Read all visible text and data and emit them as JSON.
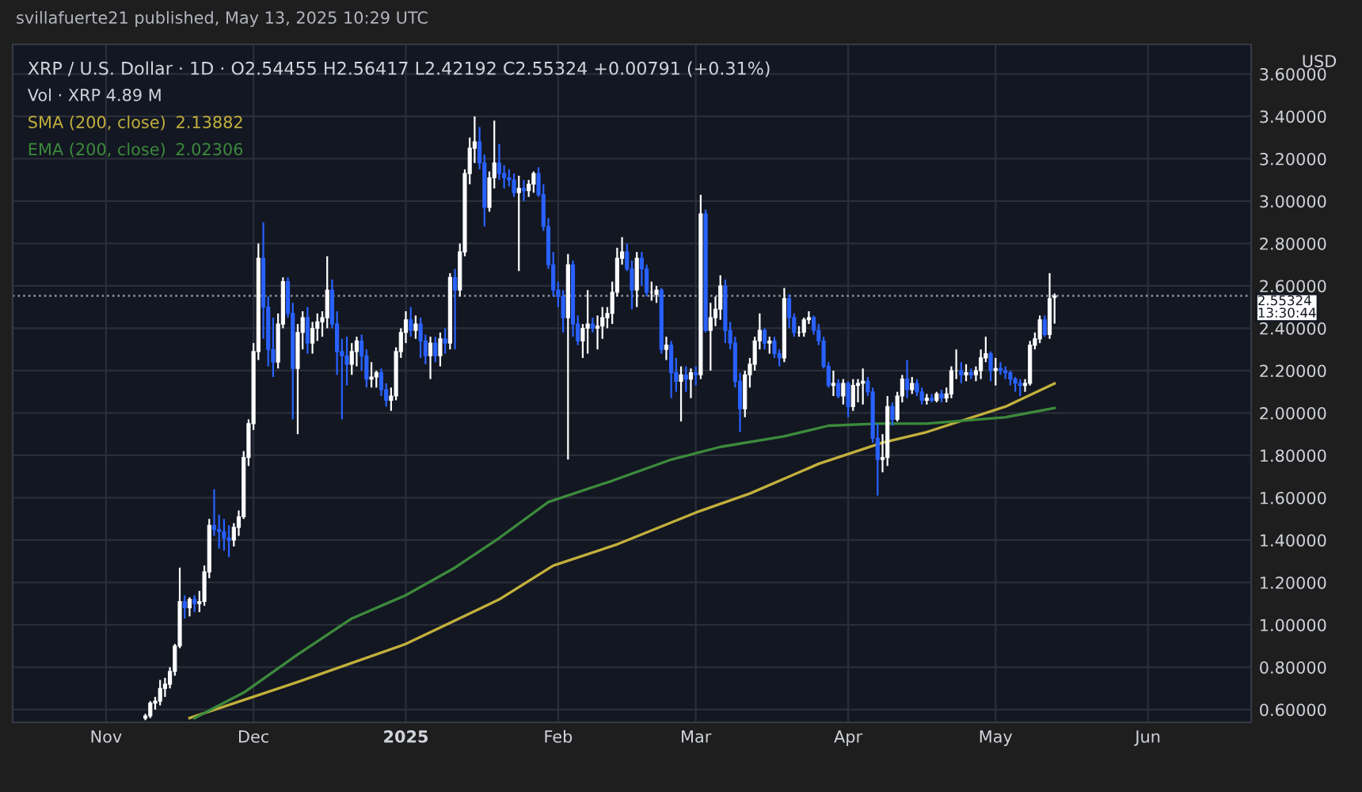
{
  "chart_data": {
    "type": "candlestick",
    "title": "XRP / U.S. Dollar · 1D · O2.54455 H2.56417 L2.42192 C2.55324 +0.00791 (+0.31%)",
    "ylabel": "USD",
    "annotations": [
      "svillafuerte21 published, May 13, 2025 10:29 UTC",
      "Vol · XRP 4.89 M",
      "2.13882",
      "2.02306"
    ],
    "x": [
      "2024-11-09",
      "2024-11-10",
      "2024-11-11",
      "2024-11-12",
      "2024-11-13",
      "2024-11-14",
      "2024-11-15",
      "2024-11-16",
      "2024-11-17",
      "2024-11-18",
      "2024-11-19",
      "2024-11-20",
      "2024-11-21",
      "2024-11-22",
      "2024-11-23",
      "2024-11-24",
      "2024-11-25",
      "2024-11-26",
      "2024-11-27",
      "2024-11-28",
      "2024-11-29",
      "2024-11-30",
      "2024-12-01",
      "2024-12-02",
      "2024-12-03",
      "2024-12-04",
      "2024-12-05",
      "2024-12-06",
      "2024-12-07",
      "2024-12-08",
      "2024-12-09",
      "2024-12-10",
      "2024-12-11",
      "2024-12-12",
      "2024-12-13",
      "2024-12-14",
      "2024-12-15",
      "2024-12-16",
      "2024-12-17",
      "2024-12-18",
      "2024-12-19",
      "2024-12-20",
      "2024-12-21",
      "2024-12-22",
      "2024-12-23",
      "2024-12-24",
      "2024-12-25",
      "2024-12-26",
      "2024-12-27",
      "2024-12-28",
      "2024-12-29",
      "2024-12-30",
      "2024-12-31",
      "2025-01-01",
      "2025-01-02",
      "2025-01-03",
      "2025-01-04",
      "2025-01-05",
      "2025-01-06",
      "2025-01-07",
      "2025-01-08",
      "2025-01-09",
      "2025-01-10",
      "2025-01-11",
      "2025-01-12",
      "2025-01-13",
      "2025-01-14",
      "2025-01-15",
      "2025-01-16",
      "2025-01-17",
      "2025-01-18",
      "2025-01-19",
      "2025-01-20",
      "2025-01-21",
      "2025-01-22",
      "2025-01-23",
      "2025-01-24",
      "2025-01-25",
      "2025-01-26",
      "2025-01-27",
      "2025-01-28",
      "2025-01-29",
      "2025-01-30",
      "2025-01-31",
      "2025-02-01",
      "2025-02-02",
      "2025-02-03",
      "2025-02-04",
      "2025-02-05",
      "2025-02-06",
      "2025-02-07",
      "2025-02-08",
      "2025-02-09",
      "2025-02-10",
      "2025-02-11",
      "2025-02-12",
      "2025-02-13",
      "2025-02-14",
      "2025-02-15",
      "2025-02-16",
      "2025-02-17",
      "2025-02-18",
      "2025-02-19",
      "2025-02-20",
      "2025-02-21",
      "2025-02-22",
      "2025-02-23",
      "2025-02-24",
      "2025-02-25",
      "2025-02-26",
      "2025-02-27",
      "2025-02-28",
      "2025-03-01",
      "2025-03-02",
      "2025-03-03",
      "2025-03-04",
      "2025-03-05",
      "2025-03-06",
      "2025-03-07",
      "2025-03-08",
      "2025-03-09",
      "2025-03-10",
      "2025-03-11",
      "2025-03-12",
      "2025-03-13",
      "2025-03-14",
      "2025-03-15",
      "2025-03-16",
      "2025-03-17",
      "2025-03-18",
      "2025-03-19",
      "2025-03-20",
      "2025-03-21",
      "2025-03-22",
      "2025-03-23",
      "2025-03-24",
      "2025-03-25",
      "2025-03-26",
      "2025-03-27",
      "2025-03-28",
      "2025-03-29",
      "2025-03-30",
      "2025-03-31",
      "2025-04-01",
      "2025-04-02",
      "2025-04-03",
      "2025-04-04",
      "2025-04-05",
      "2025-04-06",
      "2025-04-07",
      "2025-04-08",
      "2025-04-09",
      "2025-04-10",
      "2025-04-11",
      "2025-04-12",
      "2025-04-13",
      "2025-04-14",
      "2025-04-15",
      "2025-04-16",
      "2025-04-17",
      "2025-04-18",
      "2025-04-19",
      "2025-04-20",
      "2025-04-21",
      "2025-04-22",
      "2025-04-23",
      "2025-04-24",
      "2025-04-25",
      "2025-04-26",
      "2025-04-27",
      "2025-04-28",
      "2025-04-29",
      "2025-04-30",
      "2025-05-01",
      "2025-05-02",
      "2025-05-03",
      "2025-05-04",
      "2025-05-05",
      "2025-05-06",
      "2025-05-07",
      "2025-05-08",
      "2025-05-09",
      "2025-05-10",
      "2025-05-11",
      "2025-05-12",
      "2025-05-13"
    ],
    "ohlc": [
      [
        0.56,
        0.58,
        0.55,
        0.57
      ],
      [
        0.57,
        0.64,
        0.56,
        0.63
      ],
      [
        0.63,
        0.66,
        0.6,
        0.64
      ],
      [
        0.64,
        0.74,
        0.62,
        0.7
      ],
      [
        0.7,
        0.75,
        0.66,
        0.72
      ],
      [
        0.72,
        0.8,
        0.7,
        0.78
      ],
      [
        0.78,
        0.91,
        0.76,
        0.9
      ],
      [
        0.9,
        1.27,
        0.89,
        1.11
      ],
      [
        1.11,
        1.14,
        1.03,
        1.08
      ],
      [
        1.08,
        1.13,
        1.04,
        1.12
      ],
      [
        1.12,
        1.14,
        1.06,
        1.1
      ],
      [
        1.1,
        1.16,
        1.06,
        1.11
      ],
      [
        1.11,
        1.28,
        1.09,
        1.25
      ],
      [
        1.25,
        1.5,
        1.22,
        1.47
      ],
      [
        1.47,
        1.64,
        1.42,
        1.45
      ],
      [
        1.45,
        1.52,
        1.36,
        1.44
      ],
      [
        1.44,
        1.5,
        1.35,
        1.41
      ],
      [
        1.41,
        1.47,
        1.32,
        1.4
      ],
      [
        1.4,
        1.48,
        1.37,
        1.46
      ],
      [
        1.46,
        1.54,
        1.42,
        1.51
      ],
      [
        1.51,
        1.82,
        1.5,
        1.79
      ],
      [
        1.79,
        1.97,
        1.75,
        1.95
      ],
      [
        1.95,
        2.33,
        1.92,
        2.29
      ],
      [
        2.29,
        2.8,
        2.25,
        2.73
      ],
      [
        2.73,
        2.9,
        2.35,
        2.5
      ],
      [
        2.5,
        2.55,
        2.22,
        2.3
      ],
      [
        2.3,
        2.45,
        2.17,
        2.24
      ],
      [
        2.24,
        2.47,
        2.21,
        2.42
      ],
      [
        2.42,
        2.64,
        2.4,
        2.62
      ],
      [
        2.62,
        2.64,
        2.45,
        2.47
      ],
      [
        2.47,
        2.52,
        1.97,
        2.21
      ],
      [
        2.21,
        2.42,
        1.9,
        2.38
      ],
      [
        2.38,
        2.48,
        2.3,
        2.45
      ],
      [
        2.45,
        2.5,
        2.28,
        2.33
      ],
      [
        2.33,
        2.43,
        2.28,
        2.4
      ],
      [
        2.4,
        2.47,
        2.34,
        2.43
      ],
      [
        2.43,
        2.48,
        2.36,
        2.45
      ],
      [
        2.45,
        2.74,
        2.4,
        2.58
      ],
      [
        2.58,
        2.63,
        2.4,
        2.42
      ],
      [
        2.42,
        2.48,
        2.18,
        2.29
      ],
      [
        2.29,
        2.35,
        1.97,
        2.27
      ],
      [
        2.27,
        2.36,
        2.13,
        2.23
      ],
      [
        2.23,
        2.33,
        2.18,
        2.29
      ],
      [
        2.29,
        2.36,
        2.22,
        2.34
      ],
      [
        2.34,
        2.37,
        2.2,
        2.27
      ],
      [
        2.27,
        2.3,
        2.12,
        2.16
      ],
      [
        2.16,
        2.24,
        2.12,
        2.17
      ],
      [
        2.17,
        2.2,
        2.12,
        2.19
      ],
      [
        2.19,
        2.21,
        2.08,
        2.11
      ],
      [
        2.11,
        2.14,
        2.03,
        2.06
      ],
      [
        2.06,
        2.12,
        2.01,
        2.08
      ],
      [
        2.08,
        2.31,
        2.06,
        2.29
      ],
      [
        2.29,
        2.4,
        2.26,
        2.38
      ],
      [
        2.38,
        2.48,
        2.33,
        2.44
      ],
      [
        2.44,
        2.5,
        2.36,
        2.39
      ],
      [
        2.39,
        2.46,
        2.35,
        2.42
      ],
      [
        2.42,
        2.45,
        2.26,
        2.34
      ],
      [
        2.34,
        2.37,
        2.23,
        2.27
      ],
      [
        2.27,
        2.36,
        2.16,
        2.33
      ],
      [
        2.33,
        2.36,
        2.24,
        2.27
      ],
      [
        2.27,
        2.38,
        2.22,
        2.35
      ],
      [
        2.35,
        2.4,
        2.28,
        2.33
      ],
      [
        2.33,
        2.66,
        2.3,
        2.64
      ],
      [
        2.64,
        2.68,
        2.3,
        2.58
      ],
      [
        2.58,
        2.8,
        2.55,
        2.76
      ],
      [
        2.76,
        3.15,
        2.74,
        3.13
      ],
      [
        3.13,
        3.3,
        3.08,
        3.25
      ],
      [
        3.25,
        3.4,
        3.18,
        3.28
      ],
      [
        3.28,
        3.35,
        3.15,
        3.18
      ],
      [
        3.18,
        3.22,
        2.88,
        2.97
      ],
      [
        2.97,
        3.14,
        2.95,
        3.11
      ],
      [
        3.11,
        3.38,
        3.06,
        3.18
      ],
      [
        3.18,
        3.27,
        3.1,
        3.13
      ],
      [
        3.13,
        3.17,
        3.06,
        3.11
      ],
      [
        3.11,
        3.15,
        3.07,
        3.1
      ],
      [
        3.1,
        3.13,
        3.02,
        3.04
      ],
      [
        3.04,
        3.12,
        2.67,
        3.06
      ],
      [
        3.06,
        3.1,
        3.0,
        3.05
      ],
      [
        3.05,
        3.1,
        3.02,
        3.08
      ],
      [
        3.08,
        3.14,
        3.04,
        3.13
      ],
      [
        3.13,
        3.16,
        3.02,
        3.03
      ],
      [
        3.03,
        3.08,
        2.86,
        2.88
      ],
      [
        2.88,
        2.92,
        2.68,
        2.7
      ],
      [
        2.7,
        2.76,
        2.55,
        2.58
      ],
      [
        2.58,
        2.62,
        2.5,
        2.55
      ],
      [
        2.55,
        2.58,
        2.38,
        2.45
      ],
      [
        2.45,
        2.75,
        1.78,
        2.7
      ],
      [
        2.7,
        2.72,
        2.36,
        2.42
      ],
      [
        2.42,
        2.46,
        2.32,
        2.34
      ],
      [
        2.34,
        2.42,
        2.26,
        2.4
      ],
      [
        2.4,
        2.58,
        2.28,
        2.42
      ],
      [
        2.42,
        2.45,
        2.38,
        2.4
      ],
      [
        2.4,
        2.46,
        2.3,
        2.41
      ],
      [
        2.41,
        2.5,
        2.35,
        2.45
      ],
      [
        2.45,
        2.5,
        2.4,
        2.47
      ],
      [
        2.47,
        2.62,
        2.42,
        2.57
      ],
      [
        2.57,
        2.78,
        2.55,
        2.73
      ],
      [
        2.73,
        2.83,
        2.7,
        2.76
      ],
      [
        2.76,
        2.8,
        2.67,
        2.68
      ],
      [
        2.68,
        2.72,
        2.49,
        2.58
      ],
      [
        2.58,
        2.76,
        2.5,
        2.73
      ],
      [
        2.73,
        2.76,
        2.6,
        2.68
      ],
      [
        2.68,
        2.7,
        2.55,
        2.57
      ],
      [
        2.57,
        2.62,
        2.53,
        2.57
      ],
      [
        2.56,
        2.6,
        2.52,
        2.58
      ],
      [
        2.58,
        2.59,
        2.28,
        2.3
      ],
      [
        2.3,
        2.36,
        2.25,
        2.32
      ],
      [
        2.32,
        2.34,
        2.07,
        2.19
      ],
      [
        2.19,
        2.26,
        2.1,
        2.15
      ],
      [
        2.15,
        2.22,
        1.96,
        2.18
      ],
      [
        2.18,
        2.22,
        2.1,
        2.16
      ],
      [
        2.16,
        2.21,
        2.07,
        2.19
      ],
      [
        2.19,
        2.22,
        2.13,
        2.18
      ],
      [
        2.18,
        3.03,
        2.16,
        2.94
      ],
      [
        2.94,
        2.96,
        2.38,
        2.39
      ],
      [
        2.39,
        2.52,
        2.2,
        2.45
      ],
      [
        2.45,
        2.55,
        2.41,
        2.49
      ],
      [
        2.49,
        2.65,
        2.44,
        2.6
      ],
      [
        2.6,
        2.63,
        2.33,
        2.39
      ],
      [
        2.39,
        2.43,
        2.3,
        2.33
      ],
      [
        2.33,
        2.36,
        2.12,
        2.15
      ],
      [
        2.15,
        2.19,
        1.91,
        2.02
      ],
      [
        2.02,
        2.2,
        1.98,
        2.18
      ],
      [
        2.18,
        2.26,
        2.12,
        2.23
      ],
      [
        2.23,
        2.36,
        2.2,
        2.34
      ],
      [
        2.34,
        2.47,
        2.3,
        2.39
      ],
      [
        2.39,
        2.4,
        2.3,
        2.33
      ],
      [
        2.33,
        2.36,
        2.28,
        2.34
      ],
      [
        2.34,
        2.36,
        2.26,
        2.28
      ],
      [
        2.28,
        2.3,
        2.22,
        2.26
      ],
      [
        2.26,
        2.59,
        2.24,
        2.54
      ],
      [
        2.54,
        2.56,
        2.4,
        2.45
      ],
      [
        2.45,
        2.47,
        2.36,
        2.38
      ],
      [
        2.38,
        2.41,
        2.36,
        2.38
      ],
      [
        2.38,
        2.45,
        2.36,
        2.44
      ],
      [
        2.44,
        2.48,
        2.42,
        2.45
      ],
      [
        2.45,
        2.46,
        2.37,
        2.39
      ],
      [
        2.39,
        2.42,
        2.32,
        2.34
      ],
      [
        2.34,
        2.36,
        2.21,
        2.22
      ],
      [
        2.22,
        2.24,
        2.12,
        2.13
      ],
      [
        2.13,
        2.2,
        2.08,
        2.14
      ],
      [
        2.14,
        2.16,
        2.07,
        2.08
      ],
      [
        2.08,
        2.16,
        2.04,
        2.14
      ],
      [
        2.14,
        2.15,
        1.98,
        2.03
      ],
      [
        2.03,
        2.16,
        2.01,
        2.13
      ],
      [
        2.13,
        2.16,
        2.05,
        2.14
      ],
      [
        2.14,
        2.21,
        2.04,
        2.15
      ],
      [
        2.15,
        2.17,
        2.08,
        2.1
      ],
      [
        2.1,
        2.12,
        1.86,
        1.88
      ],
      [
        1.88,
        1.95,
        1.61,
        1.78
      ],
      [
        1.78,
        1.9,
        1.72,
        1.79
      ],
      [
        1.79,
        2.08,
        1.75,
        2.03
      ],
      [
        2.03,
        2.05,
        1.94,
        1.97
      ],
      [
        1.97,
        2.1,
        1.96,
        2.08
      ],
      [
        2.08,
        2.18,
        2.05,
        2.16
      ],
      [
        2.16,
        2.25,
        2.07,
        2.11
      ],
      [
        2.11,
        2.17,
        2.09,
        2.14
      ],
      [
        2.14,
        2.16,
        2.08,
        2.1
      ],
      [
        2.1,
        2.12,
        2.04,
        2.06
      ],
      [
        2.06,
        2.09,
        2.04,
        2.07
      ],
      [
        2.07,
        2.09,
        2.05,
        2.06
      ],
      [
        2.06,
        2.1,
        2.05,
        2.09
      ],
      [
        2.09,
        2.11,
        2.05,
        2.07
      ],
      [
        2.07,
        2.12,
        2.05,
        2.09
      ],
      [
        2.09,
        2.22,
        2.07,
        2.2
      ],
      [
        2.2,
        2.3,
        2.16,
        2.2
      ],
      [
        2.2,
        2.24,
        2.14,
        2.18
      ],
      [
        2.18,
        2.23,
        2.15,
        2.19
      ],
      [
        2.19,
        2.21,
        2.16,
        2.18
      ],
      [
        2.18,
        2.22,
        2.15,
        2.2
      ],
      [
        2.2,
        2.3,
        2.16,
        2.26
      ],
      [
        2.26,
        2.36,
        2.24,
        2.28
      ],
      [
        2.28,
        2.29,
        2.15,
        2.2
      ],
      [
        2.2,
        2.26,
        2.13,
        2.21
      ],
      [
        2.21,
        2.24,
        2.18,
        2.2
      ],
      [
        2.2,
        2.22,
        2.16,
        2.19
      ],
      [
        2.19,
        2.2,
        2.13,
        2.16
      ],
      [
        2.16,
        2.17,
        2.1,
        2.14
      ],
      [
        2.14,
        2.16,
        2.08,
        2.13
      ],
      [
        2.13,
        2.16,
        2.1,
        2.14
      ],
      [
        2.14,
        2.34,
        2.13,
        2.32
      ],
      [
        2.32,
        2.38,
        2.3,
        2.35
      ],
      [
        2.35,
        2.46,
        2.33,
        2.44
      ],
      [
        2.44,
        2.46,
        2.36,
        2.37
      ],
      [
        2.37,
        2.66,
        2.35,
        2.54
      ],
      [
        2.54455,
        2.56417,
        2.42192,
        2.55324
      ]
    ],
    "colors": [
      "#ffffff",
      "#ffffff",
      "#ffffff",
      "#ffffff",
      "#ffffff",
      "#ffffff",
      "#ffffff",
      "#ffffff",
      "#2962ff",
      "#ffffff",
      "#2962ff",
      "#ffffff",
      "#ffffff",
      "#ffffff",
      "#2962ff",
      "#2962ff",
      "#2962ff",
      "#2962ff",
      "#ffffff",
      "#ffffff",
      "#ffffff",
      "#ffffff",
      "#ffffff",
      "#ffffff",
      "#2962ff",
      "#2962ff",
      "#2962ff",
      "#ffffff",
      "#ffffff",
      "#2962ff",
      "#2962ff",
      "#ffffff",
      "#ffffff",
      "#2962ff",
      "#ffffff",
      "#ffffff",
      "#ffffff",
      "#ffffff",
      "#2962ff",
      "#2962ff",
      "#2962ff",
      "#2962ff",
      "#ffffff",
      "#ffffff",
      "#2962ff",
      "#2962ff",
      "#ffffff",
      "#ffffff",
      "#2962ff",
      "#2962ff",
      "#ffffff",
      "#ffffff",
      "#ffffff",
      "#ffffff",
      "#2962ff",
      "#ffffff",
      "#2962ff",
      "#2962ff",
      "#ffffff",
      "#2962ff",
      "#ffffff",
      "#2962ff",
      "#ffffff",
      "#2962ff",
      "#ffffff",
      "#ffffff",
      "#ffffff",
      "#ffffff",
      "#2962ff",
      "#2962ff",
      "#ffffff",
      "#ffffff",
      "#2962ff",
      "#2962ff",
      "#2962ff",
      "#2962ff",
      "#ffffff",
      "#2962ff",
      "#ffffff",
      "#ffffff",
      "#2962ff",
      "#2962ff",
      "#2962ff",
      "#2962ff",
      "#2962ff",
      "#2962ff",
      "#ffffff",
      "#2962ff",
      "#2962ff",
      "#ffffff",
      "#ffffff",
      "#2962ff",
      "#ffffff",
      "#ffffff",
      "#ffffff",
      "#ffffff",
      "#ffffff",
      "#ffffff",
      "#2962ff",
      "#2962ff",
      "#ffffff",
      "#2962ff",
      "#2962ff",
      "#ffffff",
      "#ffffff",
      "#2962ff",
      "#ffffff",
      "#2962ff",
      "#2962ff",
      "#ffffff",
      "#2962ff",
      "#ffffff",
      "#2962ff",
      "#ffffff",
      "#2962ff",
      "#ffffff",
      "#ffffff",
      "#ffffff",
      "#2962ff",
      "#2962ff",
      "#2962ff",
      "#2962ff",
      "#ffffff",
      "#ffffff",
      "#ffffff",
      "#ffffff",
      "#2962ff",
      "#ffffff",
      "#2962ff",
      "#2962ff",
      "#ffffff",
      "#2962ff",
      "#2962ff",
      "#ffffff",
      "#ffffff",
      "#ffffff",
      "#2962ff",
      "#2962ff",
      "#2962ff",
      "#2962ff",
      "#ffffff",
      "#2962ff",
      "#ffffff",
      "#2962ff",
      "#ffffff",
      "#ffffff",
      "#ffffff",
      "#2962ff",
      "#2962ff",
      "#2962ff",
      "#ffffff",
      "#ffffff",
      "#2962ff",
      "#ffffff",
      "#ffffff",
      "#2962ff",
      "#ffffff",
      "#2962ff",
      "#2962ff",
      "#ffffff",
      "#2962ff",
      "#ffffff",
      "#2962ff",
      "#ffffff",
      "#ffffff",
      "#ffffff",
      "#2962ff",
      "#ffffff",
      "#2962ff",
      "#ffffff",
      "#ffffff",
      "#ffffff",
      "#2962ff",
      "#ffffff",
      "#2962ff",
      "#2962ff",
      "#2962ff",
      "#2962ff",
      "#2962ff",
      "#ffffff",
      "#ffffff",
      "#ffffff",
      "#ffffff",
      "#2962ff",
      "#ffffff",
      "#ffffff"
    ],
    "series": [
      {
        "name": "SMA (200, close)",
        "type": "line",
        "color": "#c2b03c",
        "x": [
          "2024-11-18",
          "2024-11-29",
          "2024-12-10",
          "2024-12-21",
          "2025-01-01",
          "2025-01-11",
          "2025-01-20",
          "2025-01-31",
          "2025-02-13",
          "2025-03-01",
          "2025-03-12",
          "2025-03-26",
          "2025-04-08",
          "2025-04-17",
          "2025-05-03",
          "2025-05-13"
        ],
        "values": [
          0.56,
          0.645,
          0.73,
          0.82,
          0.91,
          1.02,
          1.12,
          1.28,
          1.38,
          1.53,
          1.62,
          1.76,
          1.86,
          1.91,
          2.03,
          2.13882
        ]
      },
      {
        "name": "EMA (200, close)",
        "type": "line",
        "color": "#3c8a3c",
        "x": [
          "2024-11-19",
          "2024-11-29",
          "2024-12-10",
          "2024-12-21",
          "2025-01-01",
          "2025-01-11",
          "2025-01-20",
          "2025-01-30",
          "2025-02-12",
          "2025-02-24",
          "2025-03-06",
          "2025-03-19",
          "2025-03-28",
          "2025-04-07",
          "2025-04-17",
          "2025-05-03",
          "2025-05-13"
        ],
        "values": [
          0.56,
          0.68,
          0.86,
          1.03,
          1.14,
          1.27,
          1.41,
          1.58,
          1.68,
          1.78,
          1.84,
          1.89,
          1.94,
          1.95,
          1.95,
          1.98,
          2.02306
        ]
      }
    ],
    "ref_lines": [
      {
        "axis": "y",
        "value": 2.55324,
        "label": "2.55324\n13:30:44",
        "color": "#9598a1",
        "line_style": "dotted"
      }
    ],
    "xlim": [
      "2024-10-13",
      "2025-06-22"
    ],
    "xticks": [
      {
        "value": "2024-11-01",
        "label": "Nov"
      },
      {
        "value": "2024-12-01",
        "label": "Dec"
      },
      {
        "value": "2025-01-01",
        "label": "2025"
      },
      {
        "value": "2025-02-01",
        "label": "Feb"
      },
      {
        "value": "2025-03-01",
        "label": "Mar"
      },
      {
        "value": "2025-04-01",
        "label": "Apr"
      },
      {
        "value": "2025-05-01",
        "label": "May"
      },
      {
        "value": "2025-06-01",
        "label": "Jun"
      }
    ],
    "ylim": [
      0.54,
      3.74
    ],
    "yticks": [
      {
        "value": 0.6,
        "label": "0.60000"
      },
      {
        "value": 0.8,
        "label": "0.80000"
      },
      {
        "value": 1.0,
        "label": "1.00000"
      },
      {
        "value": 1.2,
        "label": "1.20000"
      },
      {
        "value": 1.4,
        "label": "1.40000"
      },
      {
        "value": 1.6,
        "label": "1.60000"
      },
      {
        "value": 1.8,
        "label": "1.80000"
      },
      {
        "value": 2.0,
        "label": "2.00000"
      },
      {
        "value": 2.2,
        "label": "2.20000"
      },
      {
        "value": 2.4,
        "label": "2.40000"
      },
      {
        "value": 2.6,
        "label": "2.60000"
      },
      {
        "value": 2.8,
        "label": "2.80000"
      },
      {
        "value": 3.0,
        "label": "3.00000"
      },
      {
        "value": 3.2,
        "label": "3.20000"
      },
      {
        "value": 3.4,
        "label": "3.40000"
      },
      {
        "value": 3.6,
        "label": "3.60000"
      }
    ],
    "grid": true,
    "legend": "top left",
    "line_style": "solid",
    "marker": "none"
  }
}
